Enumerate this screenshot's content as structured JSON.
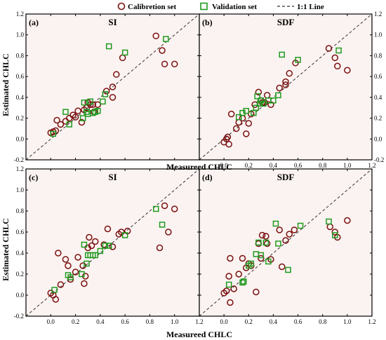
{
  "legend": {
    "items": [
      {
        "label": "Calibretion set",
        "marker": "circle",
        "color": "#7a1010"
      },
      {
        "label": "Validation set",
        "marker": "square",
        "color": "#1f9a1f"
      },
      {
        "label": "1:1 Line",
        "marker": "dashed-line",
        "color": "#333333"
      }
    ]
  },
  "axes": {
    "ylabel": "Estimated CHLC",
    "xlabel": "Measureed CHLC",
    "xlim": [
      -0.2,
      1.2
    ],
    "ylim": [
      -0.2,
      1.2
    ],
    "ticks": [
      "-0.2",
      "0.0",
      "0.2",
      "0.4",
      "0.6",
      "0.8",
      "1.0",
      "1.2"
    ],
    "xticks": [
      "0.0",
      "0.2",
      "0.4",
      "0.6",
      "0.8",
      "1.0",
      "1.2"
    ],
    "background": "#fbf3f1"
  },
  "chart_data": [
    {
      "type": "scatter",
      "panel": "(a)",
      "title": "SI",
      "xlim": [
        -0.2,
        1.2
      ],
      "ylim": [
        -0.2,
        1.2
      ],
      "series": [
        {
          "name": "Calibretion set",
          "x": [
            0.0,
            0.02,
            0.04,
            0.05,
            0.08,
            0.12,
            0.15,
            0.18,
            0.2,
            0.22,
            0.25,
            0.27,
            0.29,
            0.3,
            0.32,
            0.34,
            0.35,
            0.38,
            0.45,
            0.5,
            0.5,
            0.53,
            0.58,
            0.85,
            0.9,
            0.92,
            1.0
          ],
          "y": [
            0.06,
            0.07,
            0.08,
            0.18,
            0.14,
            0.17,
            0.2,
            0.23,
            0.21,
            0.27,
            0.16,
            0.28,
            0.3,
            0.35,
            0.33,
            0.33,
            0.26,
            0.33,
            0.46,
            0.5,
            0.4,
            0.62,
            0.78,
            0.99,
            0.85,
            0.72,
            0.72
          ]
        },
        {
          "name": "Validation set",
          "x": [
            0.02,
            0.12,
            0.15,
            0.26,
            0.27,
            0.29,
            0.3,
            0.32,
            0.34,
            0.36,
            0.38,
            0.42,
            0.44,
            0.47,
            0.6,
            0.93
          ],
          "y": [
            0.05,
            0.26,
            0.14,
            0.2,
            0.35,
            0.26,
            0.24,
            0.36,
            0.25,
            0.26,
            0.27,
            0.36,
            0.43,
            0.89,
            0.83,
            0.96
          ]
        }
      ]
    },
    {
      "type": "scatter",
      "panel": "(b)",
      "title": "SDF",
      "xlim": [
        -0.2,
        1.2
      ],
      "ylim": [
        -0.2,
        1.2
      ],
      "series": [
        {
          "name": "Calibretion set",
          "x": [
            0.0,
            0.02,
            0.03,
            0.04,
            0.06,
            0.1,
            0.12,
            0.15,
            0.18,
            0.2,
            0.22,
            0.25,
            0.28,
            0.3,
            0.31,
            0.33,
            0.35,
            0.38,
            0.45,
            0.5,
            0.5,
            0.53,
            0.58,
            0.85,
            0.9,
            0.92,
            1.0
          ],
          "y": [
            -0.03,
            0.0,
            0.02,
            -0.05,
            0.24,
            0.1,
            0.16,
            0.2,
            0.05,
            0.15,
            0.24,
            0.33,
            0.45,
            0.37,
            0.35,
            0.35,
            0.42,
            0.33,
            0.49,
            0.55,
            0.52,
            0.63,
            0.73,
            0.87,
            0.78,
            0.7,
            0.66
          ]
        },
        {
          "name": "Validation set",
          "x": [
            0.12,
            0.15,
            0.18,
            0.24,
            0.26,
            0.27,
            0.29,
            0.3,
            0.32,
            0.36,
            0.4,
            0.44,
            0.47,
            0.6,
            0.93
          ],
          "y": [
            0.21,
            0.25,
            0.27,
            0.25,
            0.3,
            0.41,
            0.34,
            0.37,
            0.34,
            0.37,
            0.37,
            0.42,
            0.81,
            0.76,
            0.85
          ]
        }
      ]
    },
    {
      "type": "scatter",
      "panel": "(c)",
      "title": "SI",
      "xlim": [
        -0.2,
        1.2
      ],
      "ylim": [
        -0.2,
        1.2
      ],
      "series": [
        {
          "name": "Calibretion set",
          "x": [
            0.0,
            0.02,
            0.04,
            0.06,
            0.08,
            0.12,
            0.14,
            0.16,
            0.2,
            0.22,
            0.26,
            0.27,
            0.28,
            0.3,
            0.31,
            0.33,
            0.36,
            0.43,
            0.46,
            0.5,
            0.55,
            0.57,
            0.62,
            0.88,
            0.92,
            0.95,
            1.0
          ],
          "y": [
            0.02,
            0.0,
            -0.04,
            0.4,
            0.1,
            0.34,
            0.28,
            0.15,
            0.22,
            0.36,
            0.28,
            0.11,
            0.18,
            0.45,
            0.55,
            0.47,
            0.51,
            0.48,
            0.63,
            0.46,
            0.58,
            0.6,
            0.61,
            0.45,
            0.85,
            0.6,
            0.82
          ]
        },
        {
          "name": "Validation set",
          "x": [
            0.03,
            0.14,
            0.16,
            0.25,
            0.27,
            0.29,
            0.3,
            0.32,
            0.34,
            0.36,
            0.4,
            0.44,
            0.47,
            0.6,
            0.85,
            0.9
          ],
          "y": [
            0.05,
            0.19,
            0.17,
            0.2,
            0.48,
            0.3,
            0.38,
            0.38,
            0.38,
            0.38,
            0.42,
            0.47,
            0.47,
            0.57,
            0.82,
            0.67
          ]
        }
      ]
    },
    {
      "type": "scatter",
      "panel": "(d)",
      "title": "SDF",
      "xlim": [
        -0.2,
        1.2
      ],
      "ylim": [
        -0.2,
        1.2
      ],
      "series": [
        {
          "name": "Calibretion set",
          "x": [
            0.0,
            0.02,
            0.04,
            0.05,
            0.08,
            0.12,
            0.15,
            0.18,
            0.2,
            0.22,
            0.26,
            0.28,
            0.3,
            0.31,
            0.34,
            0.35,
            0.38,
            0.45,
            0.47,
            0.5,
            0.53,
            0.57,
            0.86,
            0.9,
            0.92,
            1.0,
            0.05
          ],
          "y": [
            0.02,
            0.04,
            0.18,
            -0.07,
            0.06,
            0.2,
            0.35,
            0.26,
            0.3,
            0.28,
            0.03,
            0.49,
            0.35,
            0.57,
            0.56,
            0.49,
            0.34,
            0.62,
            0.27,
            0.52,
            0.58,
            0.62,
            0.65,
            0.6,
            0.55,
            0.71,
            0.35
          ]
        },
        {
          "name": "Validation set",
          "x": [
            0.04,
            0.15,
            0.16,
            0.2,
            0.22,
            0.26,
            0.28,
            0.3,
            0.34,
            0.36,
            0.42,
            0.44,
            0.52,
            0.62,
            0.85,
            0.9
          ],
          "y": [
            0.1,
            0.12,
            0.13,
            0.28,
            0.3,
            0.39,
            0.5,
            0.38,
            0.5,
            0.32,
            0.68,
            0.49,
            0.24,
            0.66,
            0.7,
            0.57
          ]
        }
      ]
    }
  ]
}
